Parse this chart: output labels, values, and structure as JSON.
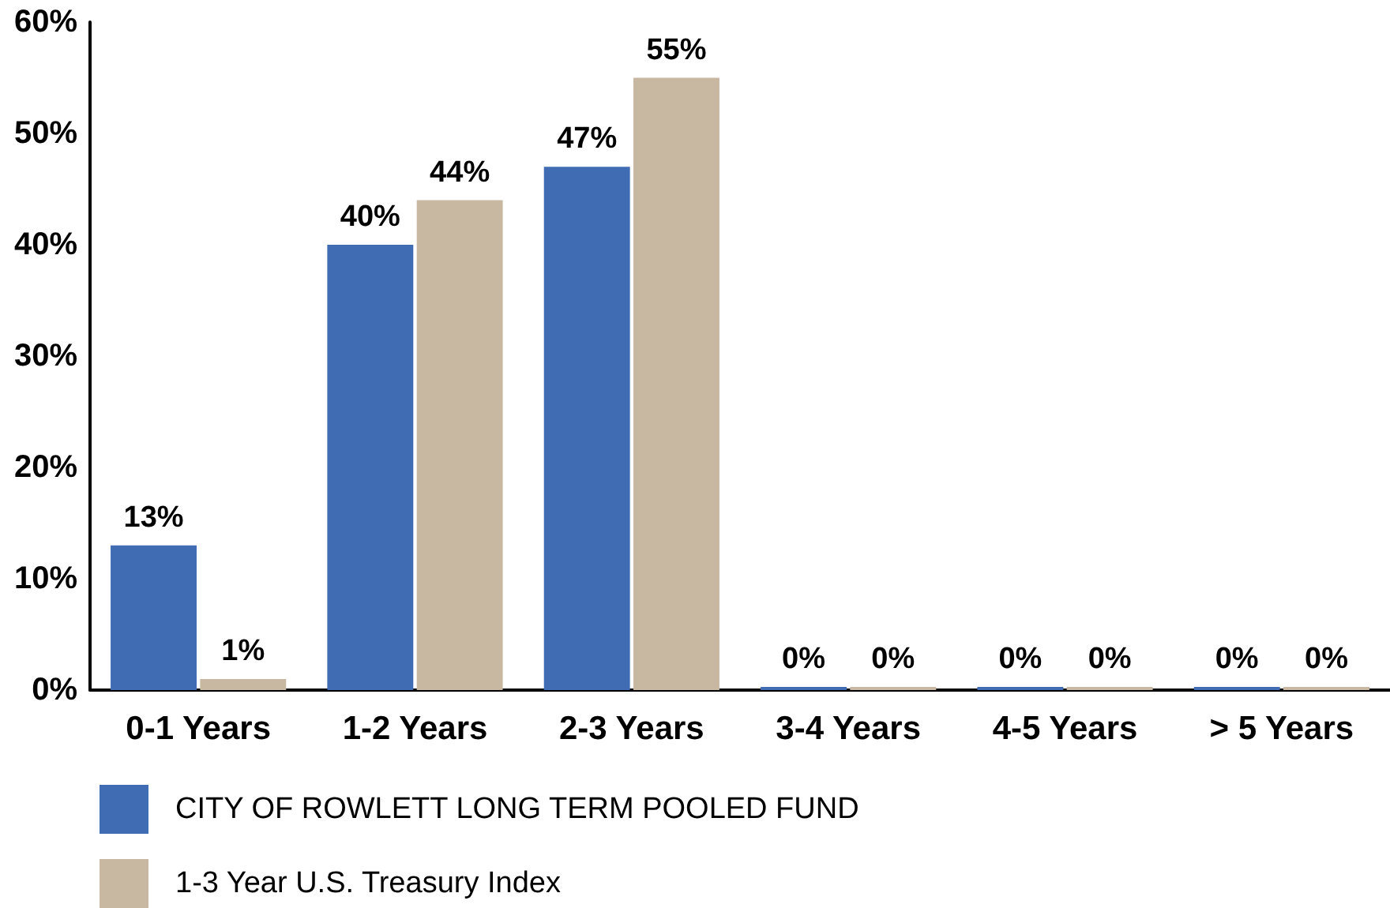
{
  "chart_data": {
    "type": "bar",
    "categories": [
      "0-1 Years",
      "1-2 Years",
      "2-3 Years",
      "3-4 Years",
      "4-5 Years",
      "> 5 Years"
    ],
    "series": [
      {
        "name": "CITY OF ROWLETT LONG TERM POOLED FUND",
        "color": "#406cb4",
        "values": [
          13,
          40,
          47,
          0,
          0,
          0
        ],
        "value_labels": [
          "13%",
          "40%",
          "47%",
          "0%",
          "0%",
          "0%"
        ]
      },
      {
        "name": "1-3 Year U.S. Treasury Index",
        "color": "#c8b8a2",
        "values": [
          1,
          44,
          55,
          0,
          0,
          0
        ],
        "value_labels": [
          "1%",
          "44%",
          "55%",
          "0%",
          "0%",
          "0%"
        ]
      }
    ],
    "ylim": [
      0,
      60
    ],
    "yticks": [
      {
        "value": 0,
        "label": "0%"
      },
      {
        "value": 10,
        "label": "10%"
      },
      {
        "value": 20,
        "label": "20%"
      },
      {
        "value": 30,
        "label": "30%"
      },
      {
        "value": 40,
        "label": "40%"
      },
      {
        "value": 50,
        "label": "50%"
      },
      {
        "value": 60,
        "label": "60%"
      }
    ],
    "legend": "bottom left"
  }
}
